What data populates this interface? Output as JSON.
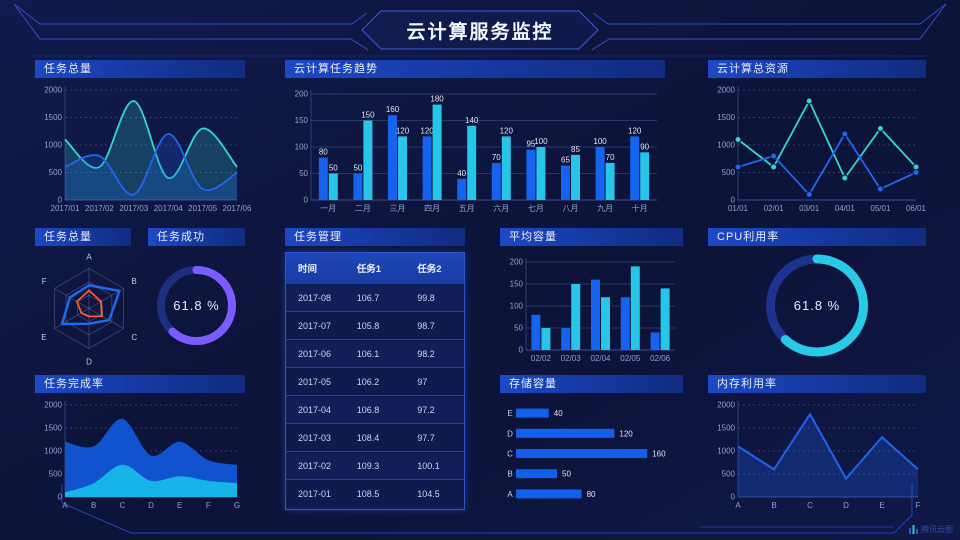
{
  "header": {
    "title": "云计算服务监控"
  },
  "watermark": {
    "label": "腾讯云图"
  },
  "panels": {
    "task_total_line": {
      "title": "任务总量"
    },
    "task_trend_bar": {
      "title": "云计算任务趋势"
    },
    "cloud_resource_line": {
      "title": "云计算总资源"
    },
    "task_total_radar": {
      "title": "任务总量"
    },
    "task_success_gauge": {
      "title": "任务成功",
      "value": "61.8 %"
    },
    "task_table": {
      "title": "任务管理",
      "columns": [
        "时间",
        "任务1",
        "任务2"
      ],
      "rows": [
        [
          "2017-08",
          "106.7",
          "99.8"
        ],
        [
          "2017-07",
          "105.8",
          "98.7"
        ],
        [
          "2017-06",
          "106.1",
          "98.2"
        ],
        [
          "2017-05",
          "106.2",
          "97"
        ],
        [
          "2017-04",
          "106.8",
          "97.2"
        ],
        [
          "2017-03",
          "108.4",
          "97.7"
        ],
        [
          "2017-02",
          "109.3",
          "100.1"
        ],
        [
          "2017-01",
          "108.5",
          "104.5"
        ]
      ]
    },
    "avg_capacity_bar": {
      "title": "平均容量"
    },
    "cpu_gauge": {
      "title": "CPU利用率",
      "value": "61.8 %"
    },
    "task_completion_area": {
      "title": "任务完成率"
    },
    "storage_hbar": {
      "title": "存储容量"
    },
    "memory_line": {
      "title": "内存利用率"
    }
  },
  "colors": {
    "background": "#0D1540",
    "series_blue": "#1563EE",
    "series_cyan": "#27C5E8",
    "line_teal": "#35D6D0",
    "line_blue": "#2166EE",
    "donut_purple": "#7C5CFF",
    "donut_cyan": "#29CAE8",
    "radar_orange": "#FF5A2D",
    "title_bar_blue": "#1C49C6"
  },
  "chart_data": [
    {
      "id": "task-total-line",
      "type": "area_smooth",
      "title": "任务总量",
      "x": [
        "2017/01",
        "2017/02",
        "2017/03",
        "2017/04",
        "2017/05",
        "2017/06"
      ],
      "series": [
        {
          "name": "cyan-series",
          "color": "#35D6D0",
          "values": [
            1100,
            600,
            1800,
            400,
            1300,
            600
          ]
        },
        {
          "name": "blue-series",
          "color": "#2166EE",
          "values": [
            600,
            800,
            100,
            1200,
            200,
            500
          ]
        }
      ],
      "ylim": [
        0,
        2000
      ],
      "yticks": [
        0,
        500,
        1000,
        1500,
        2000
      ],
      "grid": "dashed"
    },
    {
      "id": "task-trend-bar",
      "type": "bar",
      "title": "云计算任务趋势",
      "categories": [
        "一月",
        "二月",
        "三月",
        "四月",
        "五月",
        "六月",
        "七月",
        "八月",
        "九月",
        "十月"
      ],
      "series": [
        {
          "name": "blue-series",
          "color": "#1563EE",
          "values": [
            80,
            50,
            160,
            120,
            40,
            70,
            95,
            65,
            100,
            120
          ]
        },
        {
          "name": "cyan-series",
          "color": "#27C5E8",
          "values": [
            50,
            150,
            120,
            180,
            140,
            120,
            100,
            85,
            70,
            90
          ]
        }
      ],
      "ylim": [
        0,
        200
      ],
      "yticks": [
        0,
        50,
        100,
        150,
        200
      ],
      "show_labels": true
    },
    {
      "id": "cloud-resource-line",
      "type": "line",
      "title": "云计算总资源",
      "x": [
        "01/01",
        "02/01",
        "03/01",
        "04/01",
        "05/01",
        "06/01"
      ],
      "series": [
        {
          "name": "cyan-series",
          "color": "#35D6D0",
          "values": [
            1100,
            600,
            1800,
            400,
            1300,
            600
          ]
        },
        {
          "name": "blue-series",
          "color": "#2166EE",
          "values": [
            600,
            800,
            100,
            1200,
            200,
            500
          ]
        }
      ],
      "ylim": [
        0,
        2000
      ],
      "yticks": [
        0,
        500,
        1000,
        1500,
        2000
      ],
      "grid": "dashed"
    },
    {
      "id": "task-radar",
      "type": "radar",
      "title": "任务总量",
      "axes": [
        "A",
        "B",
        "C",
        "D",
        "E",
        "F"
      ],
      "max": 100,
      "series": [
        {
          "name": "blue-series",
          "color": "#1E6BF2",
          "width": 2.4,
          "values": [
            58,
            88,
            58,
            38,
            78,
            55
          ]
        },
        {
          "name": "orange-series",
          "color": "#FF5A2D",
          "width": 1.8,
          "values": [
            45,
            35,
            38,
            20,
            22,
            35
          ]
        }
      ]
    },
    {
      "id": "task-success-gauge",
      "type": "donut",
      "title": "任务成功",
      "percent": 61.8,
      "label": "61.8 %",
      "color": "#7C5CFF",
      "track": "#1C2F80"
    },
    {
      "id": "avg-capacity-bar",
      "type": "bar",
      "title": "平均容量",
      "categories": [
        "02/02",
        "02/03",
        "02/04",
        "02/05",
        "02/06"
      ],
      "series": [
        {
          "name": "blue-series",
          "color": "#1563EE",
          "values": [
            80,
            50,
            160,
            120,
            40
          ]
        },
        {
          "name": "cyan-series",
          "color": "#27C5E8",
          "values": [
            50,
            150,
            120,
            190,
            140
          ]
        }
      ],
      "ylim": [
        0,
        200
      ],
      "yticks": [
        0,
        50,
        100,
        150,
        200
      ],
      "show_labels": false
    },
    {
      "id": "cpu-gauge",
      "type": "donut",
      "title": "CPU利用率",
      "percent": 61.8,
      "label": "61.8 %",
      "color": "#29CAE8",
      "track": "#1C3490"
    },
    {
      "id": "task-completion-area",
      "type": "area_stacked",
      "title": "任务完成率",
      "x": [
        "A",
        "B",
        "C",
        "D",
        "E",
        "F",
        "G"
      ],
      "series": [
        {
          "name": "upper-blue",
          "color": "#1256D6",
          "values": [
            1200,
            1100,
            1700,
            900,
            1200,
            800,
            700
          ]
        },
        {
          "name": "lower-cyan",
          "color": "#17B9E9",
          "values": [
            100,
            300,
            700,
            350,
            450,
            350,
            300
          ]
        }
      ],
      "ylim": [
        0,
        2000
      ],
      "yticks": [
        0,
        500,
        1000,
        1500,
        2000
      ],
      "grid": "dashed"
    },
    {
      "id": "storage-hbar",
      "type": "hbar",
      "title": "存储容量",
      "categories": [
        "E",
        "D",
        "C",
        "B",
        "A"
      ],
      "values": [
        40,
        120,
        160,
        50,
        80
      ],
      "color": "#1260EA",
      "xmax": 172
    },
    {
      "id": "memory-line",
      "type": "line_area",
      "title": "内存利用率",
      "x": [
        "A",
        "B",
        "C",
        "D",
        "E",
        "F"
      ],
      "series": [
        {
          "name": "blue-series",
          "color": "#1E63EE",
          "values": [
            1100,
            600,
            1800,
            400,
            1300,
            600
          ]
        }
      ],
      "ylim": [
        0,
        2000
      ],
      "yticks": [
        0,
        500,
        1000,
        1500,
        2000
      ],
      "grid": "dashed"
    }
  ]
}
